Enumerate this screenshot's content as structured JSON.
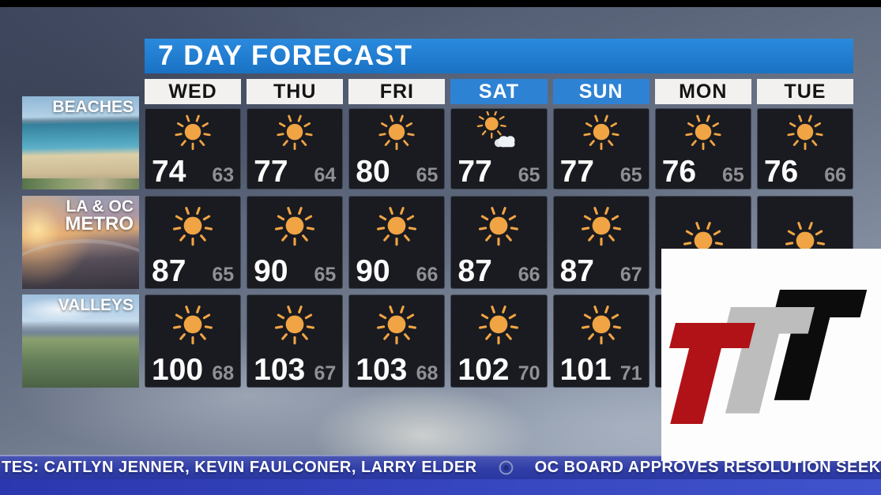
{
  "header": {
    "title": "7 DAY FORECAST"
  },
  "days": [
    {
      "label": "WED",
      "weekend": false
    },
    {
      "label": "THU",
      "weekend": false
    },
    {
      "label": "FRI",
      "weekend": false
    },
    {
      "label": "SAT",
      "weekend": true
    },
    {
      "label": "SUN",
      "weekend": true
    },
    {
      "label": "MON",
      "weekend": false
    },
    {
      "label": "TUE",
      "weekend": false
    }
  ],
  "regions": [
    {
      "name": "BEACHES",
      "label_lines": [
        "BEACHES"
      ],
      "cells": [
        {
          "icon": "sunny",
          "hi": "74",
          "lo": "63"
        },
        {
          "icon": "sunny",
          "hi": "77",
          "lo": "64"
        },
        {
          "icon": "sunny",
          "hi": "80",
          "lo": "65"
        },
        {
          "icon": "partly-cloudy",
          "hi": "77",
          "lo": "65"
        },
        {
          "icon": "sunny",
          "hi": "77",
          "lo": "65"
        },
        {
          "icon": "sunny",
          "hi": "76",
          "lo": "65"
        },
        {
          "icon": "sunny",
          "hi": "76",
          "lo": "66"
        }
      ]
    },
    {
      "name": "LA & OC METRO",
      "label_lines": [
        "LA & OC",
        "METRO"
      ],
      "cells": [
        {
          "icon": "sunny",
          "hi": "87",
          "lo": "65"
        },
        {
          "icon": "sunny",
          "hi": "90",
          "lo": "65"
        },
        {
          "icon": "sunny",
          "hi": "90",
          "lo": "66"
        },
        {
          "icon": "sunny",
          "hi": "87",
          "lo": "66"
        },
        {
          "icon": "sunny",
          "hi": "87",
          "lo": "67"
        },
        {
          "icon": "sunny",
          "hi": "",
          "lo": ""
        },
        {
          "icon": "sunny",
          "hi": "",
          "lo": ""
        }
      ]
    },
    {
      "name": "VALLEYS",
      "label_lines": [
        "VALLEYS"
      ],
      "cells": [
        {
          "icon": "sunny",
          "hi": "100",
          "lo": "68"
        },
        {
          "icon": "sunny",
          "hi": "103",
          "lo": "67"
        },
        {
          "icon": "sunny",
          "hi": "103",
          "lo": "68"
        },
        {
          "icon": "sunny",
          "hi": "102",
          "lo": "70"
        },
        {
          "icon": "sunny",
          "hi": "101",
          "lo": "71"
        },
        {
          "icon": "",
          "hi": "",
          "lo": ""
        },
        {
          "icon": "",
          "hi": "",
          "lo": ""
        }
      ]
    }
  ],
  "ticker": {
    "item1": "TES: CAITLYN JENNER, KEVIN FAULCONER, LARRY ELDER",
    "item2": "OC BOARD APPROVES RESOLUTION SEEKING",
    "separator_icon": "cbs-eye"
  },
  "colors": {
    "title_blue": "#1e7ed4",
    "weekend_blue": "#2e82d4",
    "cell_background": "#1a1b20",
    "sun_orange": "#f0a444",
    "low_temp_gray": "#8f9095",
    "ticker_blue": "#303ea8",
    "logo_red": "#b11217",
    "logo_gray": "#bdbdbd",
    "logo_black": "#0c0c0c"
  }
}
